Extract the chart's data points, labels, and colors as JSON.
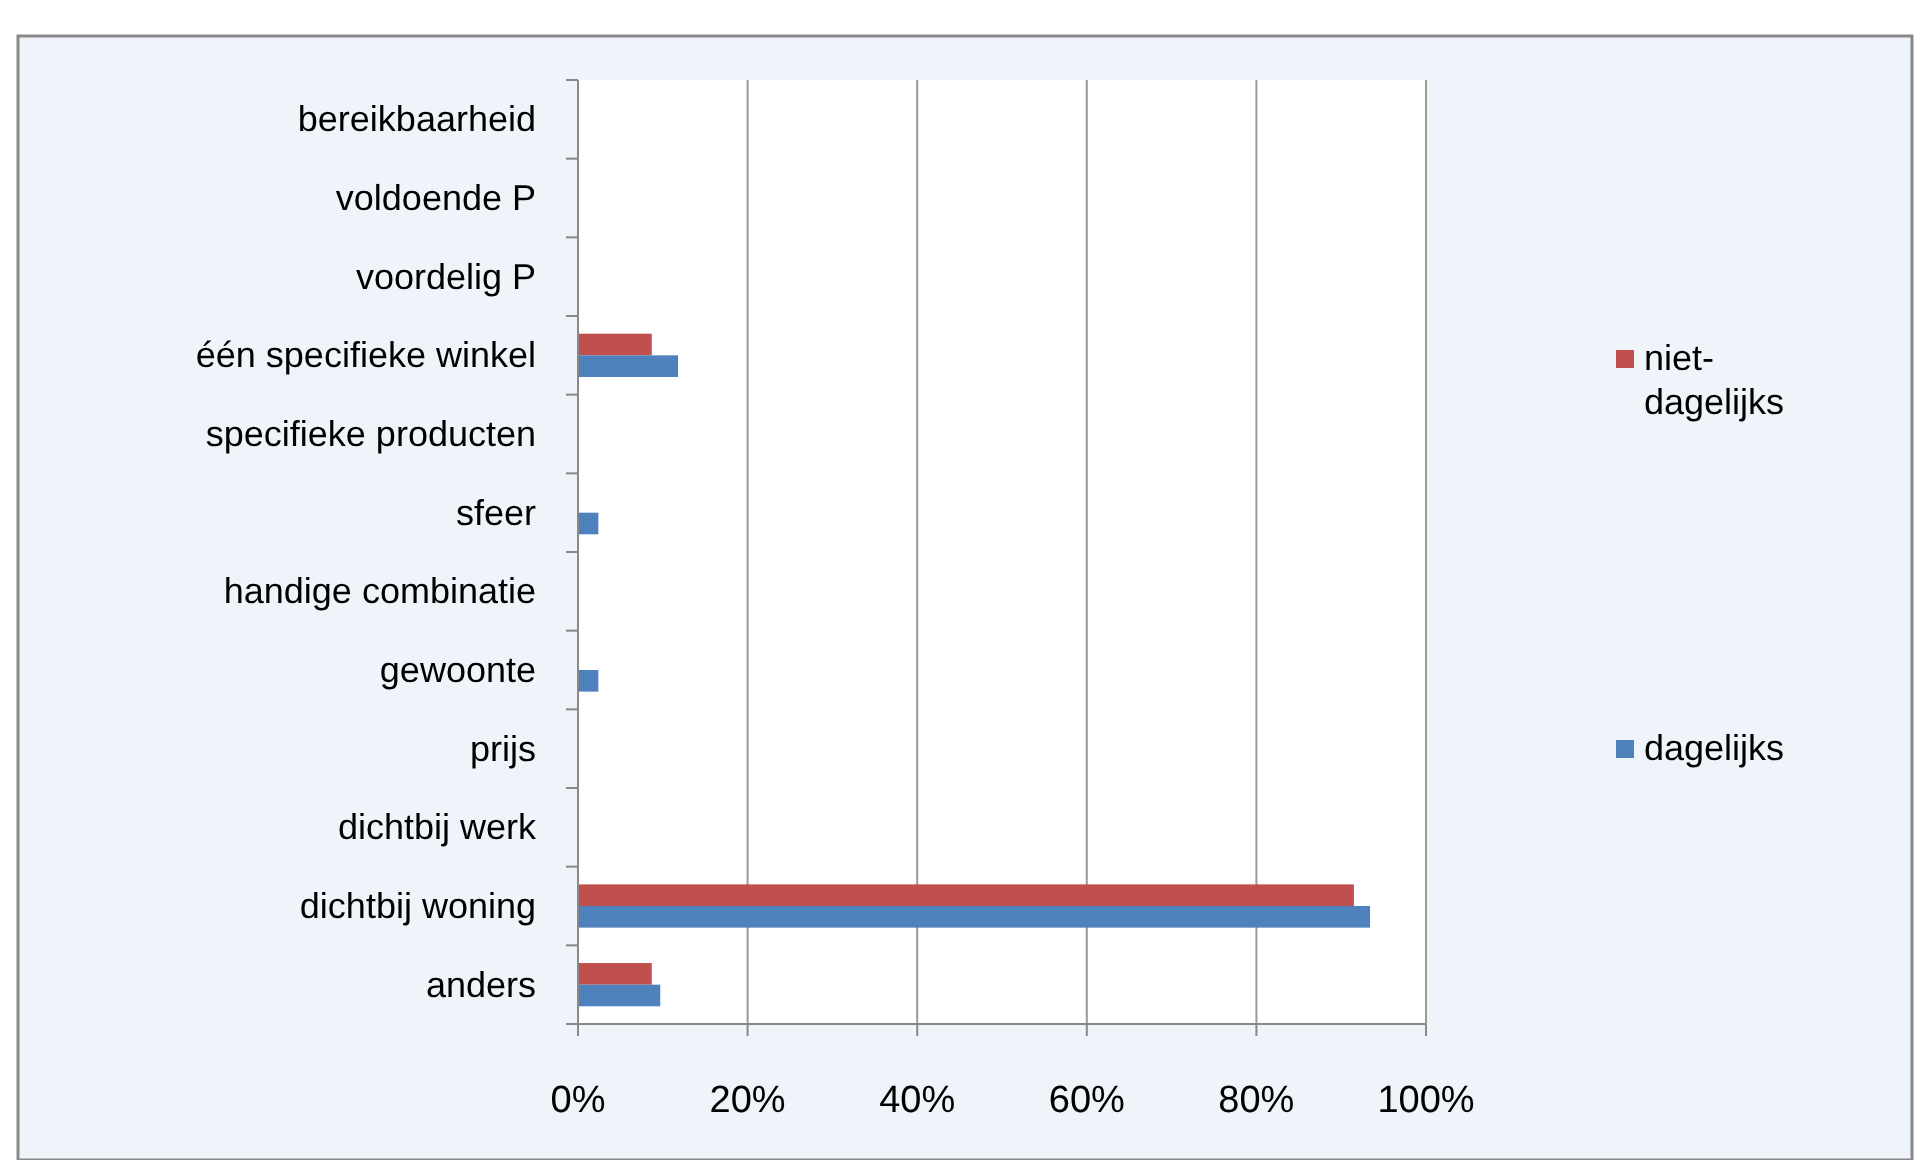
{
  "chart_data": {
    "type": "bar",
    "orientation": "horizontal",
    "categories": [
      "bereikbaarheid",
      "voldoende P",
      "voordelig P",
      "één specifieke winkel",
      "specifieke producten",
      "sfeer",
      "handige combinatie",
      "gewoonte",
      "prijs",
      "dichtbij werk",
      "dichtbij woning",
      "anders"
    ],
    "series": [
      {
        "name": "niet-dagelijks",
        "color": "#c0504d",
        "values": [
          0,
          0,
          0,
          8.7,
          0,
          0,
          0,
          0,
          0,
          0,
          91.5,
          8.7
        ]
      },
      {
        "name": "dagelijks",
        "color": "#4f81bd",
        "values": [
          0,
          0,
          0,
          11.8,
          0,
          2.4,
          0,
          2.4,
          0,
          0,
          93.4,
          9.7
        ]
      }
    ],
    "xlim": [
      0,
      100
    ],
    "xticks": [
      {
        "value": 0,
        "label": "0%"
      },
      {
        "value": 20,
        "label": "20%"
      },
      {
        "value": 40,
        "label": "40%"
      },
      {
        "value": 60,
        "label": "60%"
      },
      {
        "value": 80,
        "label": "80%"
      },
      {
        "value": 100,
        "label": "100%"
      }
    ],
    "grid": "x",
    "legend": "right"
  }
}
